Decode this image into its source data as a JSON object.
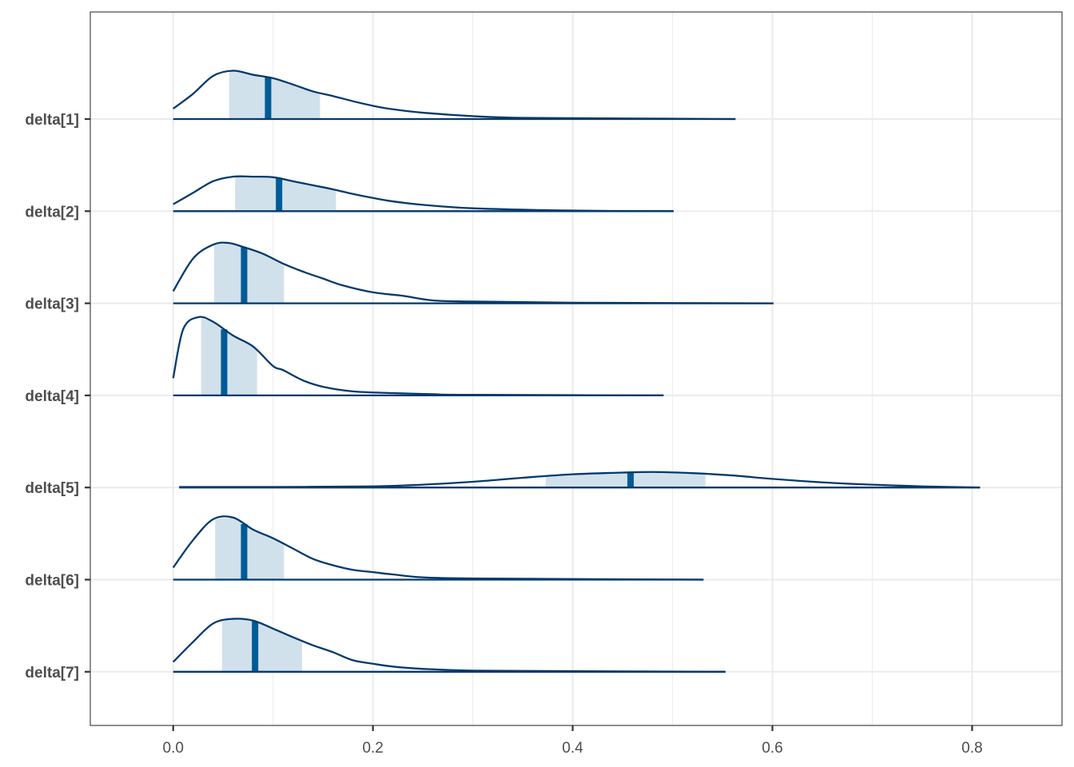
{
  "chart_data": {
    "type": "area",
    "xlim": [
      -0.083,
      0.89
    ],
    "x_ticks": [
      {
        "value": 0.0,
        "label": "0.0"
      },
      {
        "value": 0.2,
        "label": "0.2"
      },
      {
        "value": 0.4,
        "label": "0.4"
      },
      {
        "value": 0.6,
        "label": "0.6"
      },
      {
        "value": 0.8,
        "label": "0.8"
      }
    ],
    "x_minor": [
      0.1,
      0.3,
      0.5,
      0.7
    ],
    "grid": true,
    "colors": {
      "outline": "#03396c",
      "interval_fill": "#d1e1ec",
      "median": "#005b96",
      "grid": "#ebebeb",
      "panel_border": "#333333"
    },
    "series": [
      {
        "name": "delta[1]",
        "interval": [
          0.056,
          0.147
        ],
        "median": 0.095,
        "max": 0.563,
        "density": [
          [
            0.0,
            0.18
          ],
          [
            0.02,
            0.44
          ],
          [
            0.04,
            0.75
          ],
          [
            0.06,
            0.84
          ],
          [
            0.08,
            0.77
          ],
          [
            0.1,
            0.71
          ],
          [
            0.12,
            0.6
          ],
          [
            0.14,
            0.48
          ],
          [
            0.16,
            0.4
          ],
          [
            0.18,
            0.31
          ],
          [
            0.2,
            0.23
          ],
          [
            0.22,
            0.17
          ],
          [
            0.25,
            0.11
          ],
          [
            0.3,
            0.05
          ],
          [
            0.35,
            0.02
          ],
          [
            0.45,
            0.01
          ],
          [
            0.563,
            0.0
          ]
        ]
      },
      {
        "name": "delta[2]",
        "interval": [
          0.062,
          0.163
        ],
        "median": 0.106,
        "max": 0.501,
        "density": [
          [
            0.0,
            0.12
          ],
          [
            0.02,
            0.32
          ],
          [
            0.04,
            0.52
          ],
          [
            0.06,
            0.6
          ],
          [
            0.08,
            0.6
          ],
          [
            0.1,
            0.59
          ],
          [
            0.12,
            0.52
          ],
          [
            0.14,
            0.45
          ],
          [
            0.16,
            0.38
          ],
          [
            0.18,
            0.3
          ],
          [
            0.2,
            0.23
          ],
          [
            0.22,
            0.17
          ],
          [
            0.25,
            0.11
          ],
          [
            0.3,
            0.05
          ],
          [
            0.4,
            0.01
          ],
          [
            0.501,
            0.0
          ]
        ]
      },
      {
        "name": "delta[3]",
        "interval": [
          0.041,
          0.111
        ],
        "median": 0.071,
        "max": 0.601,
        "density": [
          [
            0.0,
            0.21
          ],
          [
            0.02,
            0.78
          ],
          [
            0.04,
            1.02
          ],
          [
            0.055,
            1.05
          ],
          [
            0.07,
            0.98
          ],
          [
            0.09,
            0.86
          ],
          [
            0.11,
            0.69
          ],
          [
            0.13,
            0.55
          ],
          [
            0.15,
            0.43
          ],
          [
            0.17,
            0.31
          ],
          [
            0.2,
            0.19
          ],
          [
            0.23,
            0.13
          ],
          [
            0.26,
            0.05
          ],
          [
            0.3,
            0.03
          ],
          [
            0.4,
            0.01
          ],
          [
            0.601,
            0.0
          ]
        ]
      },
      {
        "name": "delta[4]",
        "interval": [
          0.028,
          0.084
        ],
        "median": 0.051,
        "max": 0.491,
        "density": [
          [
            0.0,
            0.3
          ],
          [
            0.01,
            1.15
          ],
          [
            0.025,
            1.36
          ],
          [
            0.04,
            1.28
          ],
          [
            0.06,
            1.04
          ],
          [
            0.08,
            0.85
          ],
          [
            0.1,
            0.51
          ],
          [
            0.11,
            0.44
          ],
          [
            0.13,
            0.26
          ],
          [
            0.15,
            0.15
          ],
          [
            0.18,
            0.07
          ],
          [
            0.22,
            0.04
          ],
          [
            0.26,
            0.02
          ],
          [
            0.3,
            0.01
          ],
          [
            0.491,
            0.0
          ]
        ]
      },
      {
        "name": "delta[5]",
        "interval": [
          0.373,
          0.533
        ],
        "median": 0.458,
        "max": 0.808,
        "density": [
          [
            0.006,
            0.01
          ],
          [
            0.1,
            0.01
          ],
          [
            0.2,
            0.02
          ],
          [
            0.25,
            0.05
          ],
          [
            0.3,
            0.1
          ],
          [
            0.35,
            0.17
          ],
          [
            0.4,
            0.23
          ],
          [
            0.45,
            0.26
          ],
          [
            0.48,
            0.27
          ],
          [
            0.52,
            0.25
          ],
          [
            0.56,
            0.21
          ],
          [
            0.6,
            0.15
          ],
          [
            0.65,
            0.09
          ],
          [
            0.7,
            0.05
          ],
          [
            0.75,
            0.02
          ],
          [
            0.808,
            0.0
          ]
        ]
      },
      {
        "name": "delta[6]",
        "interval": [
          0.042,
          0.111
        ],
        "median": 0.071,
        "max": 0.531,
        "density": [
          [
            0.0,
            0.21
          ],
          [
            0.02,
            0.69
          ],
          [
            0.04,
            1.05
          ],
          [
            0.06,
            1.08
          ],
          [
            0.08,
            0.87
          ],
          [
            0.1,
            0.72
          ],
          [
            0.12,
            0.54
          ],
          [
            0.14,
            0.36
          ],
          [
            0.16,
            0.25
          ],
          [
            0.18,
            0.17
          ],
          [
            0.2,
            0.13
          ],
          [
            0.22,
            0.09
          ],
          [
            0.25,
            0.04
          ],
          [
            0.3,
            0.02
          ],
          [
            0.4,
            0.01
          ],
          [
            0.531,
            0.0
          ]
        ]
      },
      {
        "name": "delta[7]",
        "interval": [
          0.049,
          0.129
        ],
        "median": 0.082,
        "max": 0.553,
        "density": [
          [
            0.0,
            0.17
          ],
          [
            0.02,
            0.52
          ],
          [
            0.04,
            0.84
          ],
          [
            0.06,
            0.92
          ],
          [
            0.08,
            0.89
          ],
          [
            0.1,
            0.75
          ],
          [
            0.12,
            0.6
          ],
          [
            0.14,
            0.46
          ],
          [
            0.16,
            0.34
          ],
          [
            0.18,
            0.2
          ],
          [
            0.2,
            0.14
          ],
          [
            0.22,
            0.09
          ],
          [
            0.25,
            0.05
          ],
          [
            0.3,
            0.02
          ],
          [
            0.4,
            0.01
          ],
          [
            0.553,
            0.0
          ]
        ]
      }
    ]
  }
}
